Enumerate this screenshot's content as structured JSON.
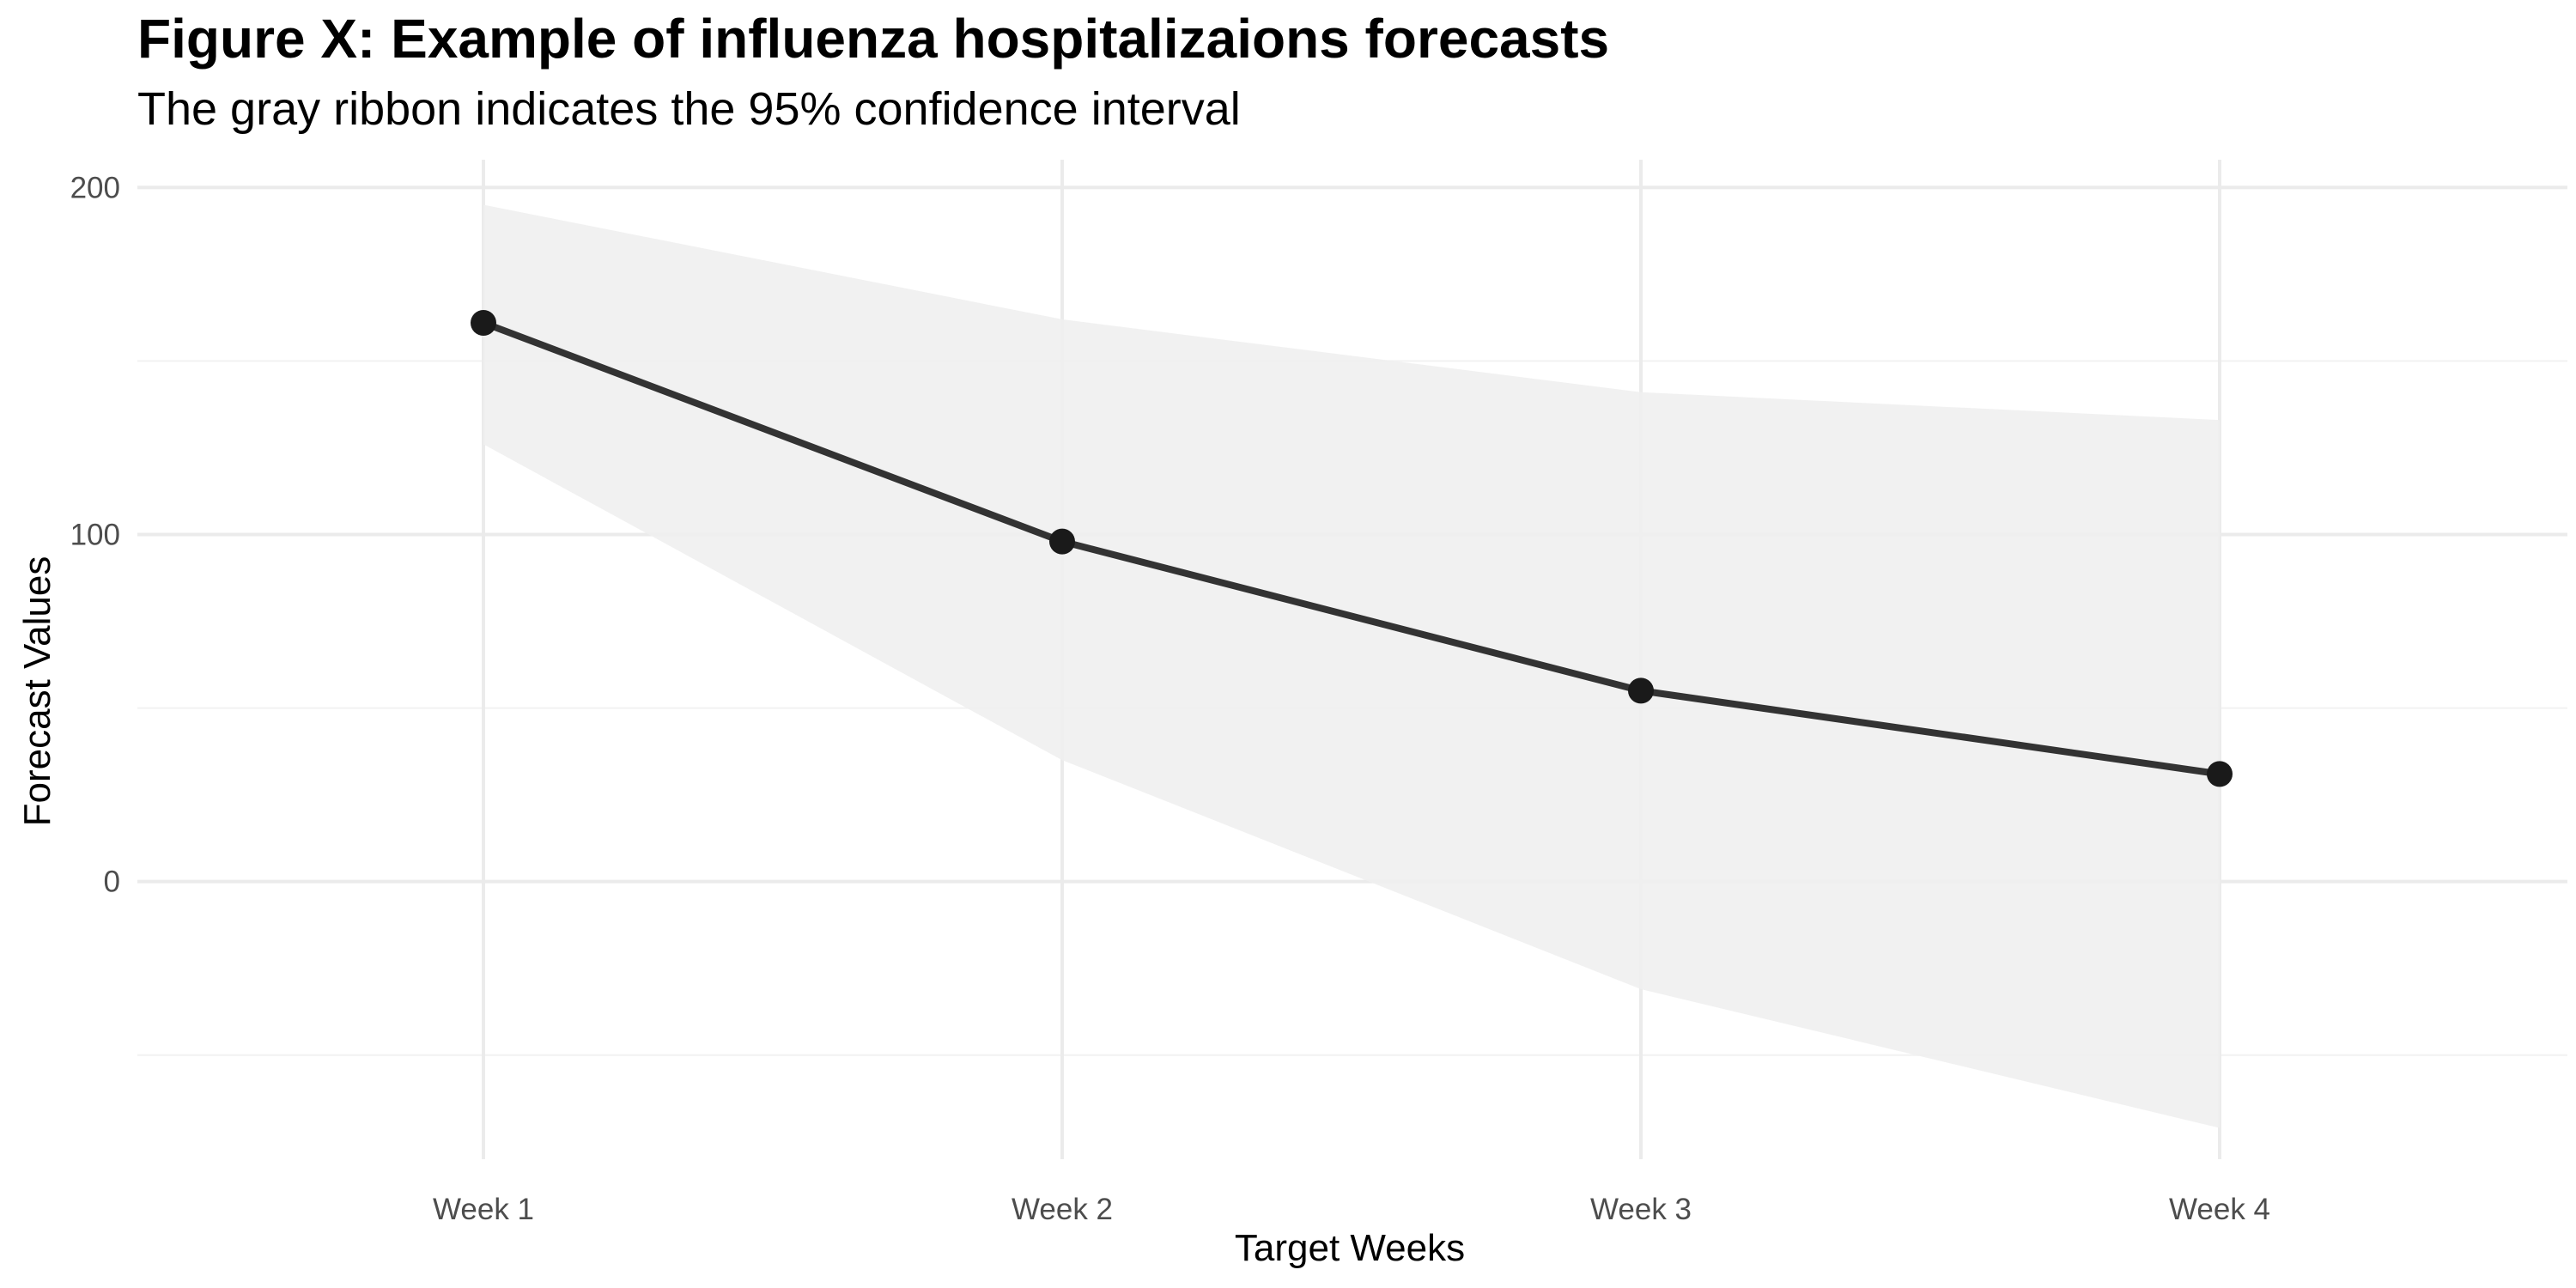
{
  "chart_data": {
    "type": "line",
    "title": "Figure X: Example of influenza hospitalizaions forecasts",
    "subtitle": "The gray ribbon indicates the 95% confidence interval",
    "xlabel": "Target Weeks",
    "ylabel": "Forecast Values",
    "categories": [
      "Week 1",
      "Week 2",
      "Week 3",
      "Week 4"
    ],
    "values": [
      161,
      98,
      55,
      31
    ],
    "ribbon": {
      "lower": [
        126,
        35,
        -31,
        -71
      ],
      "upper": [
        195,
        162,
        141,
        133
      ]
    },
    "ylim": [
      -80,
      208
    ],
    "yticks": [
      0,
      100,
      200
    ],
    "grid": true,
    "legend": "none",
    "colors": {
      "line": "#333333",
      "point": "#1a1a1a",
      "ribbon": "#efefef",
      "grid_major": "#ebebeb",
      "grid_minor": "#f2f2f2"
    }
  }
}
